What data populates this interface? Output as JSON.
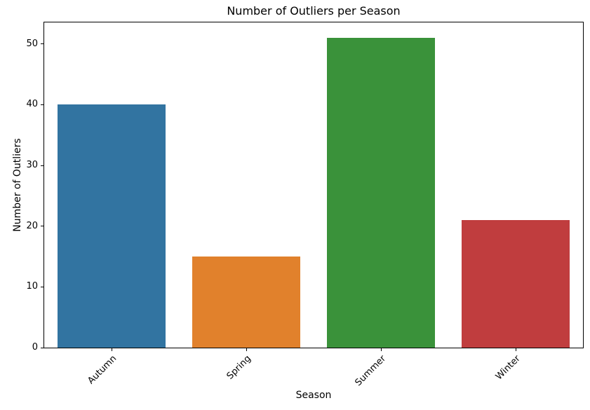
{
  "chart_data": {
    "type": "bar",
    "title": "Number of Outliers per Season",
    "xlabel": "Season",
    "ylabel": "Number of Outliers",
    "categories": [
      "Autumn",
      "Spring",
      "Summer",
      "Winter"
    ],
    "values": [
      40,
      15,
      51,
      21
    ],
    "colors": [
      "#3274a1",
      "#e1812c",
      "#3a923a",
      "#c03d3e"
    ],
    "yticks": [
      0,
      10,
      20,
      30,
      40,
      50
    ],
    "ylim": [
      0,
      53.55
    ],
    "bar_width_fraction": 0.8,
    "xtick_rotation_deg": 45,
    "grid": false,
    "legend": null,
    "background": "#ffffff",
    "axis_color": "#000000"
  }
}
